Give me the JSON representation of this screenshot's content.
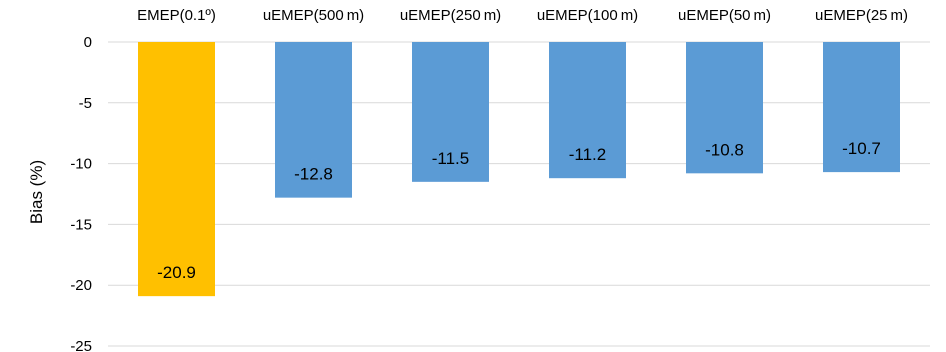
{
  "chart_data": {
    "type": "bar",
    "categories": [
      "EMEP(0.1º)",
      "uEMEP(500 m)",
      "uEMEP(250 m)",
      "uEMEP(100 m)",
      "uEMEP(50 m)",
      "uEMEP(25 m)"
    ],
    "values": [
      -20.9,
      -12.8,
      -11.5,
      -11.2,
      -10.8,
      -10.7
    ],
    "value_labels": [
      "-20.9",
      "-12.8",
      "-11.5",
      "-11.2",
      "-10.8",
      "-10.7"
    ],
    "colors": [
      "#FFC000",
      "#5B9BD5",
      "#5B9BD5",
      "#5B9BD5",
      "#5B9BD5",
      "#5B9BD5"
    ],
    "title": "",
    "xlabel": "",
    "ylabel": "Bias (%)",
    "ylim": [
      -25,
      0
    ],
    "yticks": [
      0,
      -5,
      -10,
      -15,
      -20,
      -25
    ],
    "grid": true,
    "category_axis_position": "top",
    "legend": "none"
  }
}
